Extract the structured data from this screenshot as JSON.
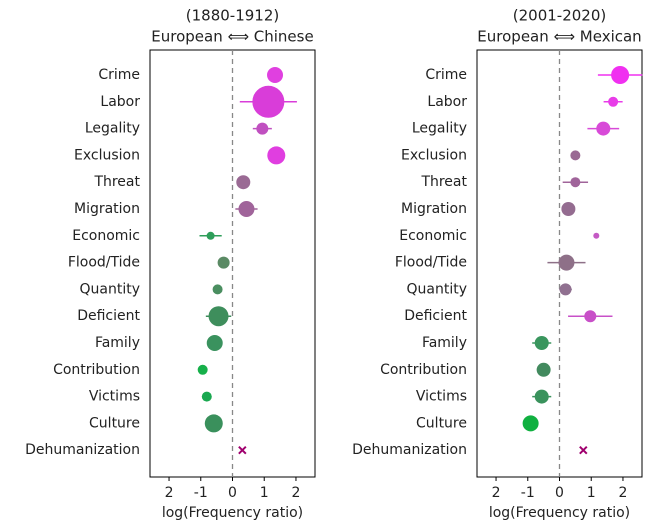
{
  "chart_data": [
    {
      "type": "dot",
      "title": "(1880-1912)",
      "subtitle": "European ⟺ Chinese",
      "xlabel": "log(Frequency ratio)",
      "categories": [
        "Crime",
        "Labor",
        "Legality",
        "Exclusion",
        "Threat",
        "Migration",
        "Economic",
        "Flood/Tide",
        "Quantity",
        "Deficient",
        "Family",
        "Contribution",
        "Victims",
        "Culture",
        "Dehumanization"
      ],
      "values": [
        1.34,
        1.13,
        0.94,
        1.38,
        0.34,
        0.44,
        -0.69,
        -0.28,
        -0.47,
        -0.44,
        -0.56,
        -0.94,
        -0.81,
        -0.59,
        0.31
      ],
      "errors": [
        null,
        0.9,
        0.3,
        null,
        null,
        0.35,
        0.35,
        null,
        null,
        0.4,
        null,
        null,
        null,
        null,
        null
      ],
      "sizes": [
        8,
        16,
        6,
        9,
        7,
        8,
        4,
        6,
        5,
        10,
        8,
        5,
        5,
        9,
        null
      ],
      "colors": [
        "#e040e0",
        "#d93dd9",
        "#c050c0",
        "#e03ee0",
        "#9a6a94",
        "#a0649a",
        "#2e9e5a",
        "#5a8a64",
        "#4a8e60",
        "#3e8e5c",
        "#3a925e",
        "#16b04a",
        "#1aa850",
        "#3a905c",
        "#a0006e"
      ],
      "xlim": [
        -2.6,
        2.6
      ],
      "xticks": [
        {
          "value": -2,
          "label": "2"
        },
        -1,
        0,
        1,
        2
      ]
    },
    {
      "type": "dot",
      "title": "(2001-2020)",
      "subtitle": "European ⟺ Mexican",
      "xlabel": "log(Frequency ratio)",
      "categories": [
        "Crime",
        "Labor",
        "Legality",
        "Exclusion",
        "Threat",
        "Migration",
        "Economic",
        "Flood/Tide",
        "Quantity",
        "Deficient",
        "Family",
        "Contribution",
        "Victims",
        "Culture",
        "Dehumanization"
      ],
      "values": [
        1.91,
        1.69,
        1.38,
        0.5,
        0.5,
        0.28,
        1.16,
        0.22,
        0.19,
        0.97,
        -0.56,
        -0.5,
        -0.56,
        -0.91,
        0.75
      ],
      "errors": [
        0.7,
        0.3,
        0.5,
        null,
        0.4,
        null,
        null,
        0.6,
        0.2,
        0.7,
        0.3,
        null,
        0.3,
        null,
        null
      ],
      "sizes": [
        9,
        5,
        7,
        5,
        5,
        7,
        3,
        8,
        6,
        6,
        7,
        7,
        7,
        8,
        null
      ],
      "colors": [
        "#f030f0",
        "#e83ce8",
        "#d84ad8",
        "#9a6a94",
        "#a0649a",
        "#946c90",
        "#c45ac4",
        "#8e7088",
        "#907090",
        "#c850c8",
        "#3a965e",
        "#428a5e",
        "#3a925c",
        "#10b040",
        "#a0006e"
      ],
      "xlim": [
        -2.6,
        2.6
      ],
      "xticks": [
        {
          "value": -2,
          "label": "2"
        },
        -1,
        0,
        1,
        2
      ]
    }
  ]
}
